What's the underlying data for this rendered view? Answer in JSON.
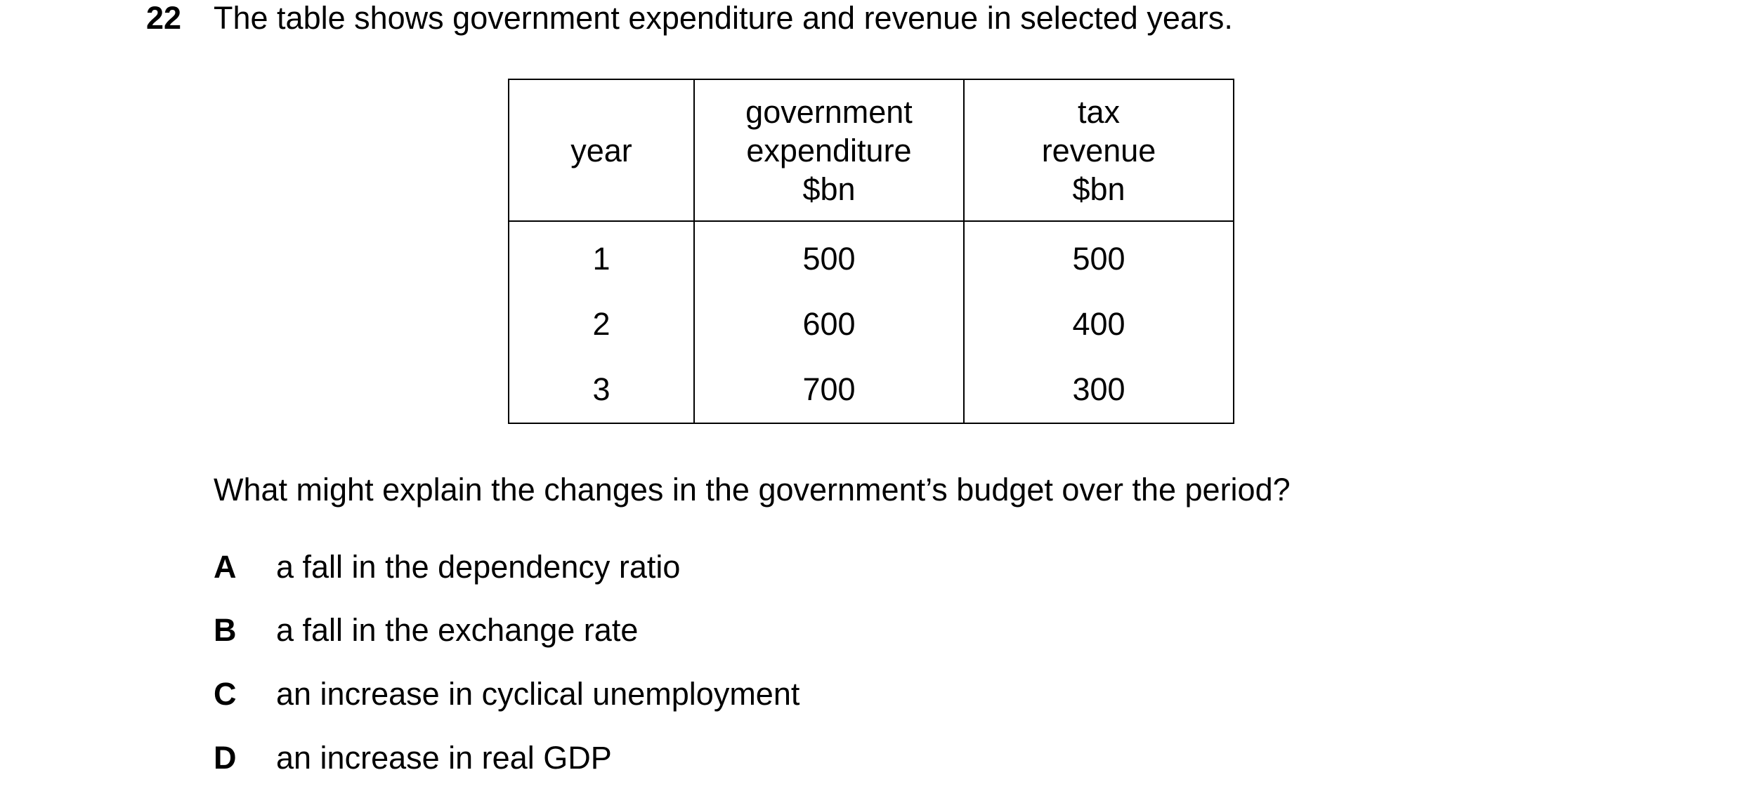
{
  "question": {
    "number": "22",
    "stem": "The table shows government expenditure and revenue in selected years.",
    "prompt": "What might explain the changes in the government’s budget over the period?"
  },
  "table": {
    "headers": [
      [
        "year"
      ],
      [
        "government",
        "expenditure",
        "$bn"
      ],
      [
        "tax",
        "revenue",
        "$bn"
      ]
    ],
    "rows": [
      [
        "1",
        "500",
        "500"
      ],
      [
        "2",
        "600",
        "400"
      ],
      [
        "3",
        "700",
        "300"
      ]
    ]
  },
  "options": [
    {
      "letter": "A",
      "text": "a fall in the dependency ratio"
    },
    {
      "letter": "B",
      "text": "a fall in the exchange rate"
    },
    {
      "letter": "C",
      "text": "an increase in cyclical unemployment"
    },
    {
      "letter": "D",
      "text": "an increase in real GDP"
    }
  ]
}
